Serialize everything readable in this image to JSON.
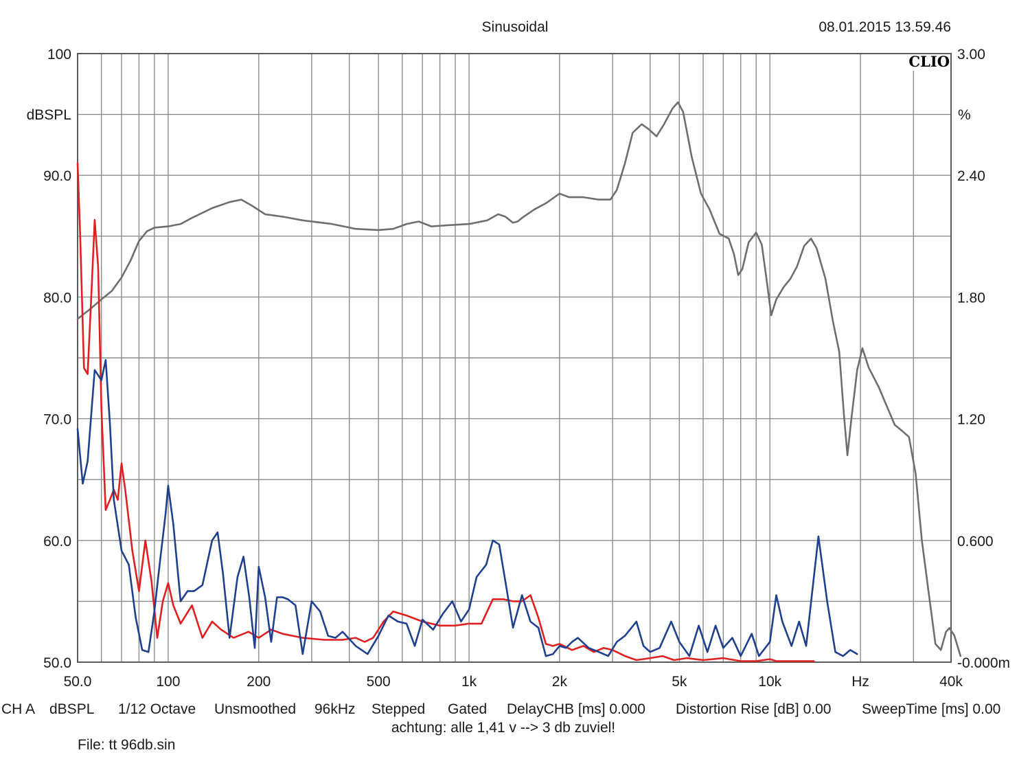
{
  "header": {
    "title": "Sinusoidal",
    "timestamp": "08.01.2015 13.59.46",
    "brand": "CLIO"
  },
  "colors": {
    "background": "#ffffff",
    "grid": "#8c8c8c",
    "frame": "#5a5a5a",
    "level_curve": "#6e6e6e",
    "red_curve": "#e02020",
    "blue_curve": "#1f3f8f"
  },
  "chart_data": {
    "type": "line",
    "x_scale": "log",
    "xlim": [
      50,
      40000
    ],
    "ylim_left": [
      50,
      100
    ],
    "ylim_right": [
      0,
      3
    ],
    "ylabel_left": "dBSPL",
    "ylabel_right": "%",
    "x_unit_label": "Hz",
    "left_ticks": [
      "100",
      "90.0",
      "80.0",
      "70.0",
      "60.0",
      "50.0"
    ],
    "left_tick_values": [
      100,
      90,
      80,
      70,
      60,
      50
    ],
    "right_ticks": [
      "3.00",
      "2.40",
      "1.80",
      "1.20",
      "0.600",
      "-0.000m"
    ],
    "right_tick_values": [
      3.0,
      2.4,
      1.8,
      1.2,
      0.6,
      0.0
    ],
    "x_tick_labels": [
      {
        "label": "50.0",
        "value": 50
      },
      {
        "label": "100",
        "value": 100
      },
      {
        "label": "200",
        "value": 200
      },
      {
        "label": "500",
        "value": 500
      },
      {
        "label": "1k",
        "value": 1000
      },
      {
        "label": "2k",
        "value": 2000
      },
      {
        "label": "5k",
        "value": 5000
      },
      {
        "label": "10k",
        "value": 10000
      },
      {
        "label": "Hz",
        "value": 20000
      },
      {
        "label": "40k",
        "value": 40000
      }
    ],
    "x_grid": [
      50,
      60,
      70,
      80,
      90,
      100,
      200,
      300,
      400,
      500,
      600,
      700,
      800,
      900,
      1000,
      2000,
      3000,
      4000,
      5000,
      6000,
      7000,
      8000,
      9000,
      10000,
      20000,
      30000,
      40000
    ],
    "y_grid_dB": [
      50,
      55,
      60,
      65,
      70,
      75,
      80,
      85,
      90,
      95,
      100
    ],
    "grid": true,
    "series": [
      {
        "axis": "left",
        "color": "#6e6e6e",
        "points": [
          [
            50,
            78.2
          ],
          [
            55,
            79
          ],
          [
            60,
            79.8
          ],
          [
            65,
            80.5
          ],
          [
            70,
            81.6
          ],
          [
            75,
            83
          ],
          [
            80,
            84.6
          ],
          [
            85,
            85.4
          ],
          [
            90,
            85.7
          ],
          [
            100,
            85.8
          ],
          [
            110,
            86
          ],
          [
            120,
            86.5
          ],
          [
            140,
            87.3
          ],
          [
            160,
            87.8
          ],
          [
            175,
            88
          ],
          [
            190,
            87.5
          ],
          [
            210,
            86.8
          ],
          [
            240,
            86.6
          ],
          [
            280,
            86.3
          ],
          [
            350,
            86
          ],
          [
            420,
            85.6
          ],
          [
            500,
            85.5
          ],
          [
            560,
            85.6
          ],
          [
            620,
            86
          ],
          [
            680,
            86.2
          ],
          [
            750,
            85.8
          ],
          [
            850,
            85.9
          ],
          [
            1000,
            86
          ],
          [
            1150,
            86.3
          ],
          [
            1250,
            86.8
          ],
          [
            1320,
            86.6
          ],
          [
            1400,
            86.1
          ],
          [
            1450,
            86.2
          ],
          [
            1500,
            86.5
          ],
          [
            1650,
            87.2
          ],
          [
            1800,
            87.7
          ],
          [
            2000,
            88.5
          ],
          [
            2150,
            88.2
          ],
          [
            2400,
            88.2
          ],
          [
            2700,
            88
          ],
          [
            2950,
            88
          ],
          [
            3100,
            88.8
          ],
          [
            3300,
            91
          ],
          [
            3500,
            93.5
          ],
          [
            3750,
            94.2
          ],
          [
            3950,
            93.8
          ],
          [
            4200,
            93.2
          ],
          [
            4450,
            94.2
          ],
          [
            4750,
            95.5
          ],
          [
            4950,
            96
          ],
          [
            5150,
            95.2
          ],
          [
            5500,
            91.5
          ],
          [
            5900,
            88.5
          ],
          [
            6300,
            87.2
          ],
          [
            6800,
            85.2
          ],
          [
            7300,
            84.8
          ],
          [
            7600,
            83.5
          ],
          [
            7850,
            81.8
          ],
          [
            8100,
            82.3
          ],
          [
            8500,
            84.5
          ],
          [
            9000,
            85.3
          ],
          [
            9400,
            84.3
          ],
          [
            9800,
            81
          ],
          [
            10100,
            78.5
          ],
          [
            10500,
            79.8
          ],
          [
            11100,
            80.8
          ],
          [
            11700,
            81.5
          ],
          [
            12300,
            82.5
          ],
          [
            13000,
            84.2
          ],
          [
            13700,
            84.8
          ],
          [
            14300,
            84
          ],
          [
            15300,
            81.5
          ],
          [
            16200,
            78
          ],
          [
            17000,
            75.5
          ],
          [
            17600,
            70.5
          ],
          [
            18100,
            67
          ],
          [
            18700,
            70.2
          ],
          [
            19500,
            74
          ],
          [
            20300,
            75.8
          ],
          [
            21300,
            74.2
          ],
          [
            23000,
            72.6
          ],
          [
            24500,
            71
          ],
          [
            26000,
            69.5
          ],
          [
            27500,
            69
          ],
          [
            29000,
            68.5
          ],
          [
            30500,
            65.5
          ],
          [
            32000,
            60
          ],
          [
            34000,
            55
          ],
          [
            35500,
            51.5
          ],
          [
            37000,
            51
          ],
          [
            38500,
            52.5
          ],
          [
            39500,
            52.8
          ],
          [
            41000,
            52.2
          ],
          [
            43000,
            50.5
          ]
        ]
      },
      {
        "axis": "right",
        "color": "#e02020",
        "points": [
          [
            50,
            2.46
          ],
          [
            51,
            2.1
          ],
          [
            52.5,
            1.45
          ],
          [
            54,
            1.42
          ],
          [
            55.5,
            1.8
          ],
          [
            57,
            2.18
          ],
          [
            58.5,
            1.95
          ],
          [
            60,
            1.25
          ],
          [
            62,
            0.75
          ],
          [
            64,
            0.8
          ],
          [
            66,
            0.85
          ],
          [
            68,
            0.8
          ],
          [
            70,
            0.98
          ],
          [
            72,
            0.85
          ],
          [
            76,
            0.55
          ],
          [
            80,
            0.35
          ],
          [
            84,
            0.6
          ],
          [
            88,
            0.4
          ],
          [
            92,
            0.12
          ],
          [
            96,
            0.3
          ],
          [
            100,
            0.39
          ],
          [
            104,
            0.28
          ],
          [
            110,
            0.19
          ],
          [
            120,
            0.28
          ],
          [
            130,
            0.12
          ],
          [
            140,
            0.2
          ],
          [
            150,
            0.16
          ],
          [
            165,
            0.12
          ],
          [
            185,
            0.15
          ],
          [
            200,
            0.12
          ],
          [
            220,
            0.16
          ],
          [
            240,
            0.14
          ],
          [
            280,
            0.12
          ],
          [
            330,
            0.11
          ],
          [
            380,
            0.11
          ],
          [
            420,
            0.12
          ],
          [
            450,
            0.1
          ],
          [
            480,
            0.12
          ],
          [
            520,
            0.2
          ],
          [
            560,
            0.25
          ],
          [
            620,
            0.23
          ],
          [
            700,
            0.2
          ],
          [
            800,
            0.18
          ],
          [
            900,
            0.18
          ],
          [
            1000,
            0.19
          ],
          [
            1100,
            0.19
          ],
          [
            1200,
            0.31
          ],
          [
            1300,
            0.31
          ],
          [
            1400,
            0.3
          ],
          [
            1500,
            0.3
          ],
          [
            1600,
            0.33
          ],
          [
            1700,
            0.22
          ],
          [
            1800,
            0.09
          ],
          [
            1900,
            0.08
          ],
          [
            2000,
            0.09
          ],
          [
            2200,
            0.06
          ],
          [
            2400,
            0.08
          ],
          [
            2600,
            0.05
          ],
          [
            2800,
            0.07
          ],
          [
            3000,
            0.06
          ],
          [
            3300,
            0.03
          ],
          [
            3600,
            0.01
          ],
          [
            4000,
            0.02
          ],
          [
            4400,
            0.03
          ],
          [
            4800,
            0.01
          ],
          [
            5300,
            0.02
          ],
          [
            6000,
            0.01
          ],
          [
            7000,
            0.02
          ],
          [
            8000,
            0.005
          ],
          [
            9000,
            0.005
          ],
          [
            10000,
            0.015
          ],
          [
            10500,
            0.005
          ],
          [
            12000,
            0.005
          ],
          [
            14000,
            0.005
          ]
        ]
      },
      {
        "axis": "right",
        "color": "#1f3f8f",
        "points": [
          [
            50,
            1.15
          ],
          [
            52,
            0.88
          ],
          [
            54,
            0.99
          ],
          [
            57,
            1.44
          ],
          [
            60,
            1.39
          ],
          [
            62,
            1.49
          ],
          [
            64,
            1.18
          ],
          [
            66,
            0.8
          ],
          [
            70,
            0.55
          ],
          [
            74,
            0.48
          ],
          [
            78,
            0.22
          ],
          [
            82,
            0.06
          ],
          [
            86,
            0.05
          ],
          [
            90,
            0.25
          ],
          [
            94,
            0.5
          ],
          [
            98,
            0.73
          ],
          [
            100,
            0.87
          ],
          [
            104,
            0.68
          ],
          [
            110,
            0.3
          ],
          [
            116,
            0.35
          ],
          [
            122,
            0.35
          ],
          [
            130,
            0.38
          ],
          [
            140,
            0.6
          ],
          [
            146,
            0.64
          ],
          [
            152,
            0.44
          ],
          [
            160,
            0.12
          ],
          [
            170,
            0.42
          ],
          [
            178,
            0.52
          ],
          [
            186,
            0.32
          ],
          [
            194,
            0.07
          ],
          [
            200,
            0.47
          ],
          [
            210,
            0.32
          ],
          [
            220,
            0.1
          ],
          [
            230,
            0.32
          ],
          [
            240,
            0.32
          ],
          [
            250,
            0.31
          ],
          [
            265,
            0.28
          ],
          [
            280,
            0.04
          ],
          [
            300,
            0.3
          ],
          [
            320,
            0.25
          ],
          [
            340,
            0.13
          ],
          [
            360,
            0.12
          ],
          [
            380,
            0.15
          ],
          [
            420,
            0.08
          ],
          [
            460,
            0.04
          ],
          [
            500,
            0.13
          ],
          [
            540,
            0.23
          ],
          [
            580,
            0.2
          ],
          [
            620,
            0.19
          ],
          [
            660,
            0.08
          ],
          [
            700,
            0.21
          ],
          [
            760,
            0.16
          ],
          [
            820,
            0.24
          ],
          [
            880,
            0.3
          ],
          [
            940,
            0.2
          ],
          [
            1000,
            0.26
          ],
          [
            1060,
            0.42
          ],
          [
            1140,
            0.48
          ],
          [
            1200,
            0.6
          ],
          [
            1260,
            0.58
          ],
          [
            1320,
            0.4
          ],
          [
            1400,
            0.17
          ],
          [
            1500,
            0.33
          ],
          [
            1600,
            0.2
          ],
          [
            1700,
            0.17
          ],
          [
            1800,
            0.03
          ],
          [
            1900,
            0.04
          ],
          [
            2000,
            0.08
          ],
          [
            2100,
            0.07
          ],
          [
            2200,
            0.1
          ],
          [
            2300,
            0.12
          ],
          [
            2500,
            0.07
          ],
          [
            2700,
            0.05
          ],
          [
            2900,
            0.03
          ],
          [
            3100,
            0.1
          ],
          [
            3300,
            0.13
          ],
          [
            3600,
            0.2
          ],
          [
            3800,
            0.08
          ],
          [
            4000,
            0.05
          ],
          [
            4300,
            0.07
          ],
          [
            4700,
            0.2
          ],
          [
            5000,
            0.1
          ],
          [
            5400,
            0.03
          ],
          [
            5800,
            0.18
          ],
          [
            6200,
            0.05
          ],
          [
            6600,
            0.18
          ],
          [
            7000,
            0.07
          ],
          [
            7500,
            0.12
          ],
          [
            8000,
            0.03
          ],
          [
            8700,
            0.14
          ],
          [
            9200,
            0.03
          ],
          [
            10000,
            0.1
          ],
          [
            10500,
            0.33
          ],
          [
            11000,
            0.2
          ],
          [
            11800,
            0.08
          ],
          [
            12500,
            0.2
          ],
          [
            13200,
            0.08
          ],
          [
            14500,
            0.62
          ],
          [
            15500,
            0.3
          ],
          [
            16500,
            0.05
          ],
          [
            17500,
            0.03
          ],
          [
            18500,
            0.06
          ],
          [
            19000,
            0.05
          ],
          [
            19500,
            0.04
          ]
        ]
      }
    ]
  },
  "footer": {
    "settings": [
      "CH A",
      "dBSPL",
      "1/12 Octave",
      "Unsmoothed",
      "96kHz",
      "Stepped",
      "Gated",
      "DelayCHB [ms] 0.000",
      "Distortion Rise [dB] 0.00",
      "SweepTime [ms] 0.00"
    ],
    "note": "achtung: alle 1,41 v --> 3 db zuviel!",
    "file": "File: tt 96db.sin"
  }
}
